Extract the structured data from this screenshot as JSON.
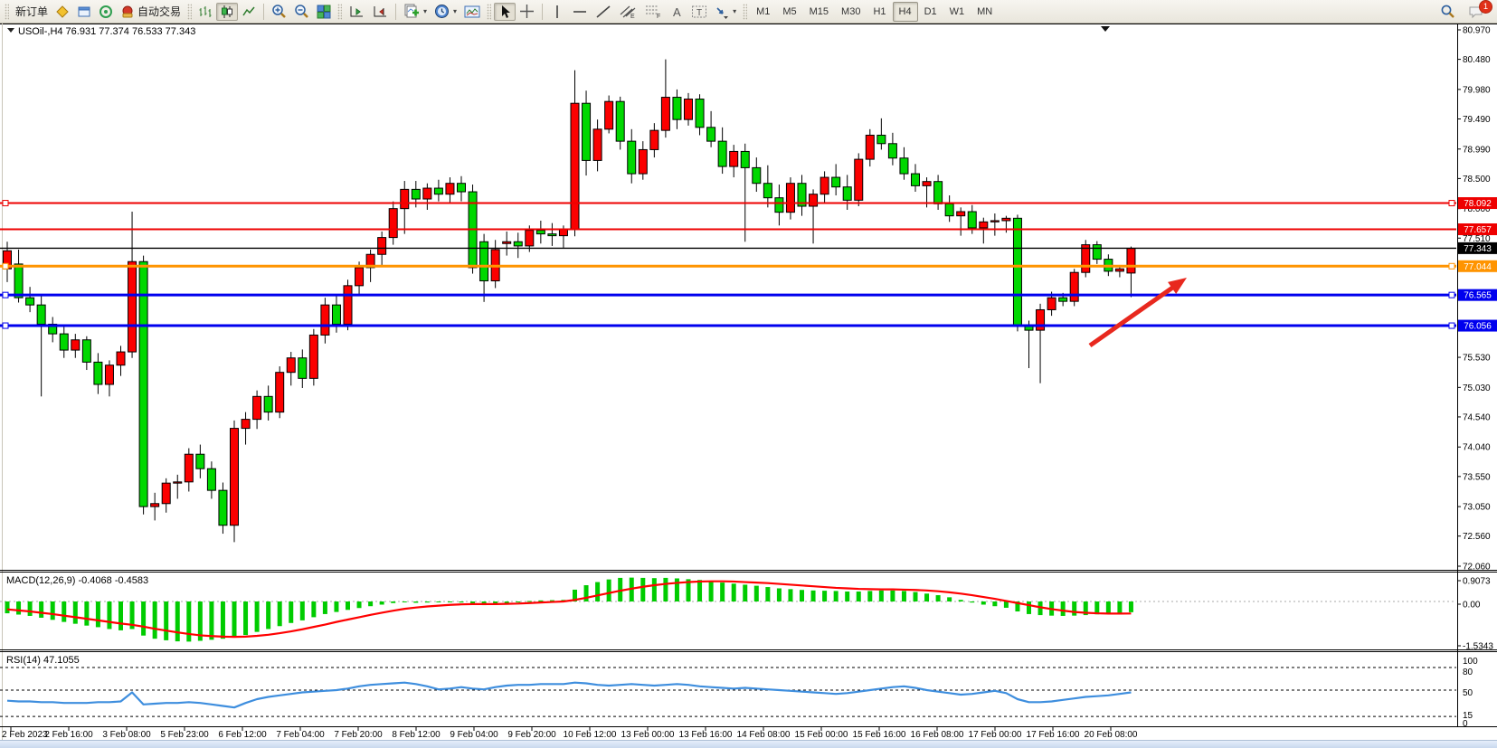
{
  "toolbar": {
    "new_order": "新订单",
    "auto_trading": "自动交易",
    "glyphs": {
      "text_tool": "A",
      "label_tool": "T",
      "channel_suffix": "E",
      "fibo_suffix": "F"
    },
    "timeframes": [
      "M1",
      "M5",
      "M15",
      "M30",
      "H1",
      "H4",
      "D1",
      "W1",
      "MN"
    ],
    "active_timeframe": "H4",
    "badge_count": "1"
  },
  "chart": {
    "title_text": "USOil-,H4  76.931 77.374 76.533 77.343",
    "symbol": "USOil-",
    "period": "H4",
    "open": "76.931",
    "high": "77.374",
    "low": "76.533",
    "close": "77.343"
  },
  "chart_data": {
    "type": "candlestick",
    "symbol": "USOil-",
    "timeframe": "H4",
    "price_axis": {
      "min": 72.06,
      "max": 80.97,
      "ticks": [
        80.97,
        80.48,
        79.98,
        79.49,
        78.99,
        78.5,
        78.0,
        77.51,
        77.02,
        76.52,
        76.03,
        75.53,
        75.03,
        74.54,
        74.04,
        73.55,
        73.05,
        72.56,
        72.06
      ]
    },
    "time_ticks": [
      "2 Feb 2023",
      "2 Feb 16:00",
      "3 Feb 08:00",
      "5 Feb 23:00",
      "6 Feb 12:00",
      "7 Feb 04:00",
      "7 Feb 20:00",
      "8 Feb 12:00",
      "9 Feb 04:00",
      "9 Feb 20:00",
      "10 Feb 12:00",
      "13 Feb 00:00",
      "13 Feb 16:00",
      "14 Feb 08:00",
      "15 Feb 00:00",
      "15 Feb 16:00",
      "16 Feb 08:00",
      "17 Feb 00:00",
      "17 Feb 16:00",
      "20 Feb 08:00"
    ],
    "colors": {
      "up_candle": "#fb0000",
      "down_candle": "#00d800",
      "outline": "#000000",
      "macd_hist": "#00cc00",
      "macd_signal": "#ff0000",
      "rsi_line": "#3e8ede",
      "line_red": "#ee0000",
      "line_orange": "#ff9400",
      "line_blue": "#0000ee",
      "line_black": "#000000",
      "arrow": "#e8281e"
    },
    "hlines": [
      {
        "price": 78.092,
        "color": "#ee0000",
        "width": 2,
        "badge": "#ee0000",
        "ends": true
      },
      {
        "price": 77.657,
        "color": "#ee0000",
        "width": 2,
        "badge": "#ee0000",
        "ends": false
      },
      {
        "price": 77.343,
        "color": "#000000",
        "width": 1.4,
        "badge": "#000000",
        "ends": false
      },
      {
        "price": 77.044,
        "color": "#ff9400",
        "width": 3,
        "badge": "#ff9400",
        "ends": true
      },
      {
        "price": 76.565,
        "color": "#0000ee",
        "width": 3,
        "badge": "#0000ee",
        "ends": true
      },
      {
        "price": 76.056,
        "color": "#0000ee",
        "width": 3,
        "badge": "#0000ee",
        "ends": true
      }
    ],
    "ohlc": [
      [
        77.0,
        77.45,
        76.78,
        77.3
      ],
      [
        77.08,
        77.32,
        76.44,
        76.52
      ],
      [
        76.52,
        76.7,
        76.28,
        76.4
      ],
      [
        76.4,
        76.55,
        74.88,
        76.08
      ],
      [
        76.08,
        76.2,
        75.78,
        75.92
      ],
      [
        75.92,
        76.05,
        75.52,
        75.65
      ],
      [
        75.65,
        75.92,
        75.52,
        75.82
      ],
      [
        75.82,
        75.88,
        75.32,
        75.45
      ],
      [
        75.45,
        75.6,
        74.92,
        75.08
      ],
      [
        75.08,
        75.48,
        74.88,
        75.4
      ],
      [
        75.4,
        75.72,
        75.22,
        75.62
      ],
      [
        75.62,
        77.95,
        75.52,
        77.12
      ],
      [
        77.12,
        77.22,
        72.92,
        73.05
      ],
      [
        73.05,
        73.28,
        72.82,
        73.1
      ],
      [
        73.1,
        73.52,
        72.95,
        73.44
      ],
      [
        73.44,
        73.58,
        73.18,
        73.46
      ],
      [
        73.46,
        74.02,
        73.3,
        73.92
      ],
      [
        73.92,
        74.08,
        73.52,
        73.68
      ],
      [
        73.68,
        73.8,
        73.18,
        73.32
      ],
      [
        73.32,
        73.45,
        72.6,
        72.74
      ],
      [
        72.74,
        74.48,
        72.46,
        74.35
      ],
      [
        74.35,
        74.62,
        74.08,
        74.5
      ],
      [
        74.5,
        74.98,
        74.34,
        74.88
      ],
      [
        74.88,
        75.06,
        74.48,
        74.62
      ],
      [
        74.62,
        75.38,
        74.52,
        75.28
      ],
      [
        75.28,
        75.62,
        75.06,
        75.52
      ],
      [
        75.52,
        75.66,
        75.02,
        75.18
      ],
      [
        75.18,
        76.0,
        75.06,
        75.9
      ],
      [
        75.9,
        76.52,
        75.76,
        76.4
      ],
      [
        76.4,
        76.56,
        75.94,
        76.08
      ],
      [
        76.08,
        76.82,
        75.98,
        76.72
      ],
      [
        76.72,
        77.12,
        76.55,
        77.02
      ],
      [
        77.02,
        77.32,
        76.78,
        77.24
      ],
      [
        77.24,
        77.62,
        77.04,
        77.52
      ],
      [
        77.52,
        78.12,
        77.4,
        78.0
      ],
      [
        78.0,
        78.46,
        77.58,
        78.32
      ],
      [
        78.32,
        78.46,
        78.02,
        78.16
      ],
      [
        78.16,
        78.42,
        77.98,
        78.34
      ],
      [
        78.34,
        78.48,
        78.12,
        78.24
      ],
      [
        78.24,
        78.52,
        78.08,
        78.42
      ],
      [
        78.42,
        78.54,
        78.12,
        78.28
      ],
      [
        78.28,
        78.4,
        76.92,
        77.02
      ],
      [
        77.45,
        77.58,
        76.45,
        76.8
      ],
      [
        76.8,
        77.48,
        76.68,
        77.32
      ],
      [
        77.42,
        77.62,
        77.22,
        77.45
      ],
      [
        77.45,
        77.6,
        77.18,
        77.38
      ],
      [
        77.38,
        77.72,
        77.28,
        77.64
      ],
      [
        77.64,
        77.8,
        77.42,
        77.58
      ],
      [
        77.58,
        77.76,
        77.38,
        77.55
      ],
      [
        77.55,
        77.72,
        77.35,
        77.66
      ],
      [
        77.66,
        80.3,
        77.54,
        79.75
      ],
      [
        79.75,
        79.96,
        78.55,
        78.8
      ],
      [
        78.8,
        79.48,
        78.62,
        79.32
      ],
      [
        79.32,
        79.88,
        79.25,
        79.78
      ],
      [
        79.78,
        79.86,
        78.98,
        79.12
      ],
      [
        79.12,
        79.32,
        78.42,
        78.58
      ],
      [
        78.58,
        79.12,
        78.48,
        78.98
      ],
      [
        78.98,
        79.42,
        78.85,
        79.3
      ],
      [
        79.3,
        80.48,
        79.18,
        79.85
      ],
      [
        79.85,
        79.98,
        79.32,
        79.48
      ],
      [
        79.48,
        79.92,
        79.38,
        79.82
      ],
      [
        79.82,
        79.9,
        79.22,
        79.35
      ],
      [
        79.35,
        79.62,
        79.02,
        79.12
      ],
      [
        79.12,
        79.35,
        78.58,
        78.7
      ],
      [
        78.7,
        79.06,
        78.52,
        78.95
      ],
      [
        78.95,
        79.08,
        77.45,
        78.68
      ],
      [
        78.68,
        78.85,
        78.28,
        78.42
      ],
      [
        78.42,
        78.72,
        78.02,
        78.18
      ],
      [
        78.18,
        78.4,
        77.72,
        77.94
      ],
      [
        77.94,
        78.52,
        77.82,
        78.42
      ],
      [
        78.42,
        78.56,
        77.88,
        78.04
      ],
      [
        78.04,
        78.32,
        77.42,
        78.24
      ],
      [
        78.24,
        78.62,
        78.1,
        78.52
      ],
      [
        78.52,
        78.74,
        78.22,
        78.36
      ],
      [
        78.36,
        78.56,
        77.98,
        78.14
      ],
      [
        78.14,
        78.92,
        78.04,
        78.82
      ],
      [
        78.82,
        79.32,
        78.7,
        79.22
      ],
      [
        79.22,
        79.5,
        78.98,
        79.08
      ],
      [
        79.08,
        79.26,
        78.72,
        78.84
      ],
      [
        78.84,
        79.02,
        78.48,
        78.58
      ],
      [
        78.58,
        78.74,
        78.28,
        78.38
      ],
      [
        78.38,
        78.52,
        78.02,
        78.45
      ],
      [
        78.45,
        78.56,
        77.98,
        78.08
      ],
      [
        78.08,
        78.22,
        77.78,
        77.88
      ],
      [
        77.88,
        78.02,
        77.55,
        77.95
      ],
      [
        77.95,
        78.06,
        77.58,
        77.68
      ],
      [
        77.68,
        77.85,
        77.42,
        77.78
      ],
      [
        77.78,
        77.92,
        77.55,
        77.8
      ],
      [
        77.8,
        77.88,
        77.6,
        77.84
      ],
      [
        77.84,
        77.9,
        75.96,
        76.05
      ],
      [
        76.05,
        76.14,
        75.35,
        75.98
      ],
      [
        75.98,
        76.42,
        75.1,
        76.32
      ],
      [
        76.32,
        76.62,
        76.22,
        76.52
      ],
      [
        76.52,
        76.6,
        76.38,
        76.46
      ],
      [
        76.46,
        77.0,
        76.38,
        76.94
      ],
      [
        76.94,
        77.48,
        76.86,
        77.4
      ],
      [
        77.4,
        77.46,
        77.08,
        77.16
      ],
      [
        77.16,
        77.24,
        76.88,
        76.96
      ],
      [
        76.96,
        77.06,
        76.86,
        77.0
      ],
      [
        76.93,
        77.37,
        76.53,
        77.34
      ]
    ],
    "macd": {
      "label": "MACD(12,26,9) -0.4068 -0.4583",
      "main_value": -0.4068,
      "signal_value": -0.4583,
      "scale_labels": [
        [
          "0.9073",
          642
        ],
        [
          "0.00",
          668
        ],
        [
          "-1.5343",
          714
        ]
      ],
      "histogram": [
        -0.45,
        -0.5,
        -0.55,
        -0.62,
        -0.7,
        -0.78,
        -0.85,
        -0.92,
        -0.98,
        -1.05,
        -1.1,
        -1.05,
        -1.3,
        -1.42,
        -1.48,
        -1.52,
        -1.53,
        -1.5,
        -1.46,
        -1.42,
        -1.38,
        -1.28,
        -1.16,
        -1.05,
        -0.94,
        -0.82,
        -0.72,
        -0.6,
        -0.48,
        -0.4,
        -0.32,
        -0.25,
        -0.18,
        -0.12,
        -0.06,
        -0.02,
        -0.05,
        -0.04,
        -0.03,
        -0.02,
        -0.04,
        -0.1,
        -0.14,
        -0.1,
        -0.06,
        -0.02,
        0.02,
        0.04,
        0.05,
        0.06,
        0.45,
        0.62,
        0.74,
        0.84,
        0.9,
        0.91,
        0.9,
        0.89,
        0.9,
        0.88,
        0.85,
        0.82,
        0.78,
        0.72,
        0.68,
        0.64,
        0.6,
        0.55,
        0.5,
        0.47,
        0.44,
        0.42,
        0.41,
        0.4,
        0.38,
        0.38,
        0.4,
        0.42,
        0.42,
        0.4,
        0.36,
        0.3,
        0.24,
        0.16,
        0.06,
        -0.04,
        -0.12,
        -0.18,
        -0.24,
        -0.38,
        -0.48,
        -0.52,
        -0.54,
        -0.55,
        -0.54,
        -0.52,
        -0.49,
        -0.46,
        -0.43,
        -0.41
      ],
      "signal": [
        -0.3,
        -0.34,
        -0.38,
        -0.43,
        -0.48,
        -0.54,
        -0.6,
        -0.66,
        -0.72,
        -0.78,
        -0.84,
        -0.89,
        -0.96,
        -1.04,
        -1.11,
        -1.18,
        -1.24,
        -1.29,
        -1.32,
        -1.34,
        -1.35,
        -1.34,
        -1.31,
        -1.27,
        -1.21,
        -1.14,
        -1.06,
        -0.97,
        -0.88,
        -0.78,
        -0.69,
        -0.6,
        -0.51,
        -0.43,
        -0.35,
        -0.28,
        -0.23,
        -0.19,
        -0.16,
        -0.13,
        -0.11,
        -0.1,
        -0.1,
        -0.1,
        -0.09,
        -0.08,
        -0.06,
        -0.04,
        -0.02,
        0.0,
        0.06,
        0.14,
        0.23,
        0.32,
        0.41,
        0.49,
        0.56,
        0.62,
        0.67,
        0.71,
        0.74,
        0.76,
        0.77,
        0.77,
        0.76,
        0.74,
        0.72,
        0.7,
        0.67,
        0.64,
        0.61,
        0.58,
        0.55,
        0.52,
        0.5,
        0.48,
        0.47,
        0.46,
        0.46,
        0.45,
        0.44,
        0.42,
        0.39,
        0.35,
        0.3,
        0.24,
        0.17,
        0.1,
        0.02,
        -0.06,
        -0.14,
        -0.22,
        -0.29,
        -0.35,
        -0.4,
        -0.43,
        -0.45,
        -0.46,
        -0.46,
        -0.4583
      ]
    },
    "rsi": {
      "label": "RSI(14) 47.1055",
      "value": 47.1055,
      "levels": [
        80,
        50,
        15
      ],
      "scale_labels": [
        [
          "100",
          731
        ],
        [
          "80",
          743
        ],
        [
          "50",
          766
        ],
        [
          "15",
          791
        ],
        [
          "0",
          800
        ]
      ],
      "values": [
        36,
        35,
        35,
        34,
        34,
        33,
        33,
        33,
        34,
        34,
        35,
        47,
        31,
        32,
        33,
        33,
        34,
        33,
        31,
        29,
        27,
        33,
        38,
        41,
        43,
        45,
        47,
        48,
        49,
        50,
        52,
        55,
        57,
        58,
        59,
        60,
        58,
        55,
        51,
        52,
        54,
        52,
        51,
        54,
        56,
        57,
        57,
        58,
        58,
        58,
        60,
        59,
        57,
        56,
        57,
        58,
        57,
        56,
        57,
        58,
        57,
        55,
        54,
        53,
        52,
        53,
        52,
        51,
        50,
        49,
        48,
        47,
        46,
        45,
        46,
        48,
        50,
        52,
        54,
        55,
        53,
        50,
        48,
        46,
        44,
        45,
        47,
        49,
        46,
        38,
        34,
        34,
        35,
        37,
        39,
        41,
        42,
        43,
        45,
        47
      ]
    },
    "annotation_arrow": {
      "from": [
        1205,
        382
      ],
      "to": [
        1312,
        307
      ]
    }
  }
}
